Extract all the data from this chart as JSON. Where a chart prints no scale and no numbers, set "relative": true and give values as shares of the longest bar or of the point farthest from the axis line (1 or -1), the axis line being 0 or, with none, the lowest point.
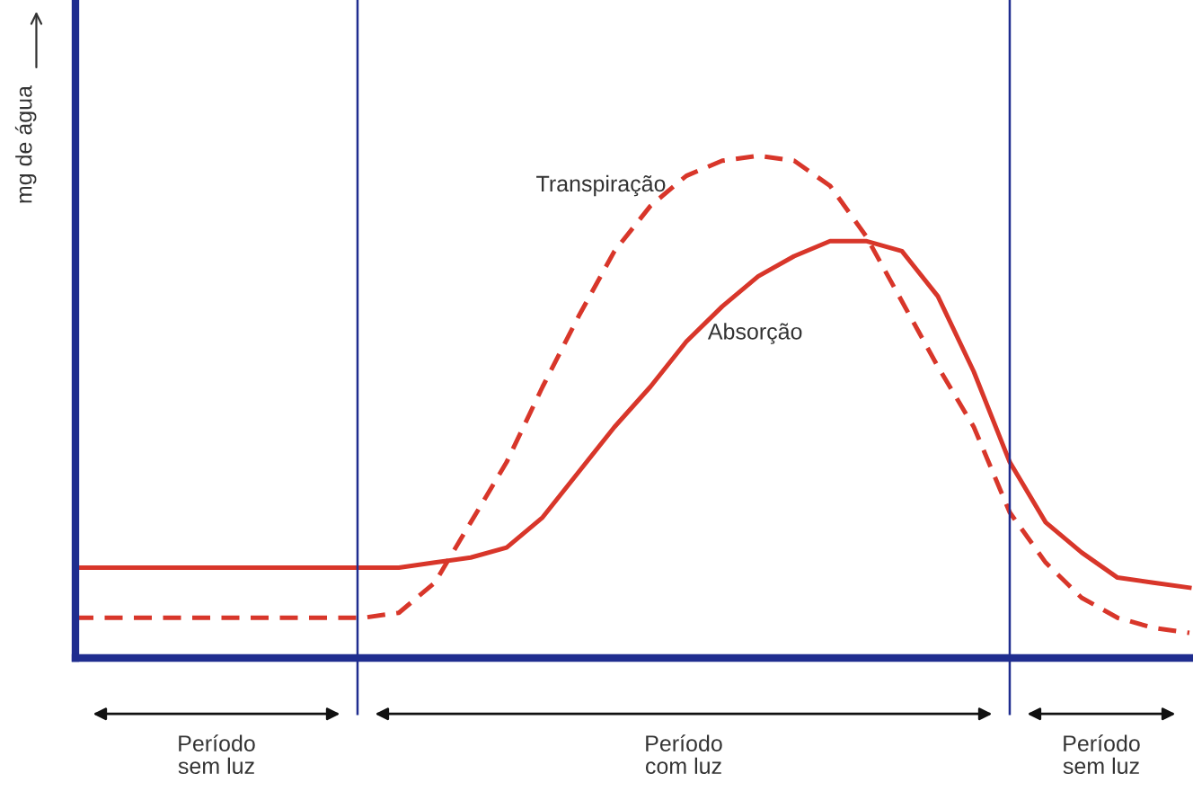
{
  "chart_data": {
    "type": "line",
    "relative": true,
    "ylabel": "mg de água",
    "categories": [
      null,
      null,
      null,
      null,
      null,
      null,
      null,
      null,
      null,
      null,
      null,
      null,
      null,
      null,
      null,
      null,
      null,
      null,
      null,
      null,
      null,
      null,
      null,
      null,
      null,
      null,
      null,
      null,
      null,
      null,
      null,
      null
    ],
    "series": [
      {
        "name": "Absorção",
        "color": "#d8362a",
        "line_style": "solid",
        "values": [
          0.18,
          0.18,
          0.18,
          0.18,
          0.18,
          0.18,
          0.18,
          0.18,
          0.18,
          0.18,
          0.19,
          0.2,
          0.22,
          0.28,
          0.37,
          0.46,
          0.54,
          0.63,
          0.7,
          0.76,
          0.8,
          0.83,
          0.83,
          0.81,
          0.72,
          0.57,
          0.39,
          0.27,
          0.21,
          0.16,
          0.15,
          0.14
        ]
      },
      {
        "name": "Transpiração",
        "color": "#d8362a",
        "line_style": "dashed",
        "values": [
          0.08,
          0.08,
          0.08,
          0.08,
          0.08,
          0.08,
          0.08,
          0.08,
          0.08,
          0.09,
          0.15,
          0.27,
          0.39,
          0.54,
          0.68,
          0.81,
          0.9,
          0.96,
          0.99,
          1,
          0.99,
          0.94,
          0.84,
          0.71,
          0.58,
          0.46,
          0.29,
          0.19,
          0.12,
          0.08,
          0.06,
          0.05
        ]
      }
    ],
    "annotations": [
      "Período\nsem luz",
      "Período\ncom luz",
      "Período\nsem luz"
    ],
    "marker": "none"
  }
}
